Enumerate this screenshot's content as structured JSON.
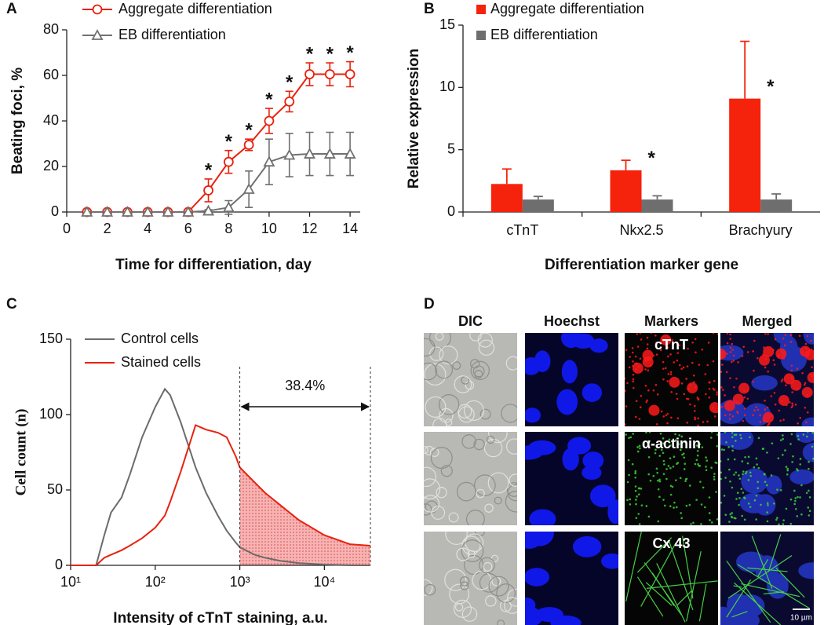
{
  "chart_data": [
    {
      "type": "line",
      "panel_label": "A",
      "x_label": "Time for differentiation, day",
      "y_label": "Beating foci, %",
      "x": [
        1,
        2,
        3,
        4,
        5,
        6,
        7,
        8,
        9,
        10,
        11,
        12,
        13,
        14
      ],
      "xlim": [
        0,
        14.5
      ],
      "xticks": [
        0,
        2,
        4,
        6,
        8,
        10,
        12,
        14
      ],
      "ylim": [
        0,
        80
      ],
      "yticks": [
        0,
        20,
        40,
        60,
        80
      ],
      "series": [
        {
          "name": "Aggregate differentiation",
          "color": "#e8220e",
          "marker": "circle",
          "values": [
            0,
            0,
            0,
            0,
            0,
            0,
            9.5,
            22,
            29.5,
            40,
            48.5,
            60.5,
            60.5,
            60.5
          ],
          "errors": [
            0,
            0,
            0,
            0,
            0,
            0,
            5,
            5,
            2.5,
            5.5,
            4.5,
            5,
            5,
            5.5
          ]
        },
        {
          "name": "EB differentiation",
          "color": "#707070",
          "marker": "triangle",
          "values": [
            0,
            0,
            0,
            0,
            0,
            0,
            0.5,
            2,
            10,
            22,
            25,
            25.5,
            25.5,
            25.5
          ],
          "errors": [
            0,
            0,
            0,
            0,
            0,
            0,
            0.5,
            3,
            8,
            10,
            9.5,
            9.5,
            9.5,
            9.5
          ]
        }
      ],
      "significance": [
        null,
        null,
        null,
        null,
        null,
        null,
        "*",
        "*",
        "*",
        "*",
        "*",
        "*",
        "*",
        "*"
      ]
    },
    {
      "type": "bar",
      "panel_label": "B",
      "x_label": "Differentiation marker gene",
      "y_label": "Relative expression",
      "categories": [
        "cTnT",
        "Nkx2.5",
        "Brachyury"
      ],
      "ylim": [
        0,
        15
      ],
      "yticks": [
        0,
        5,
        10,
        15
      ],
      "series": [
        {
          "name": "Aggregate differentiation",
          "color": "#f5220c",
          "values": [
            2.25,
            3.35,
            9.1
          ],
          "errors": [
            1.2,
            0.8,
            4.6
          ]
        },
        {
          "name": "EB differentiation",
          "color": "#6e6e6e",
          "values": [
            1,
            1,
            1
          ],
          "errors": [
            0.25,
            0.3,
            0.45
          ]
        }
      ],
      "significance": [
        null,
        "*",
        "*"
      ]
    },
    {
      "type": "line",
      "panel_label": "C",
      "x_label": "Intensity of cTnT staining, a.u.",
      "y_label": "Cell count (n)",
      "log_x": true,
      "x": [
        10,
        20,
        25,
        30,
        40,
        50,
        70,
        100,
        130,
        150,
        200,
        300,
        400,
        550,
        700,
        900,
        1000,
        1500,
        2000,
        3000,
        5000,
        10000,
        20000,
        35000
      ],
      "xlim": [
        10,
        35000
      ],
      "xticks": [
        {
          "value": 10,
          "label": "10¹"
        },
        {
          "value": 100,
          "label": "10²"
        },
        {
          "value": 1000,
          "label": "10³"
        },
        {
          "value": 10000,
          "label": "10⁴"
        }
      ],
      "ylim": [
        0,
        150
      ],
      "yticks": [
        0,
        50,
        100,
        150
      ],
      "series": [
        {
          "name": "Control cells",
          "color": "#6b6b6b",
          "values": [
            0,
            0,
            20,
            35,
            45,
            60,
            85,
            105,
            117,
            113,
            95,
            65,
            48,
            33,
            23,
            15,
            12,
            7,
            5,
            3,
            1.5,
            0.5,
            0,
            0
          ]
        },
        {
          "name": "Stained cells",
          "color": "#e8220e",
          "values": [
            0,
            0,
            5,
            7,
            10,
            13,
            18,
            25,
            33,
            42,
            62,
            93,
            90,
            88,
            85,
            72,
            65,
            55,
            48,
            40,
            30,
            20,
            14,
            13
          ]
        }
      ],
      "gate": [
        1000,
        35000
      ],
      "gate_label": "38.4%"
    }
  ],
  "panel_d": {
    "panel_label": "D",
    "columns": [
      "DIC",
      "Hoechst",
      "Markers",
      "Merged"
    ],
    "markers": [
      "cTnT",
      "α-actinin",
      "Cx 43"
    ],
    "scale_bar": "10 µm"
  }
}
